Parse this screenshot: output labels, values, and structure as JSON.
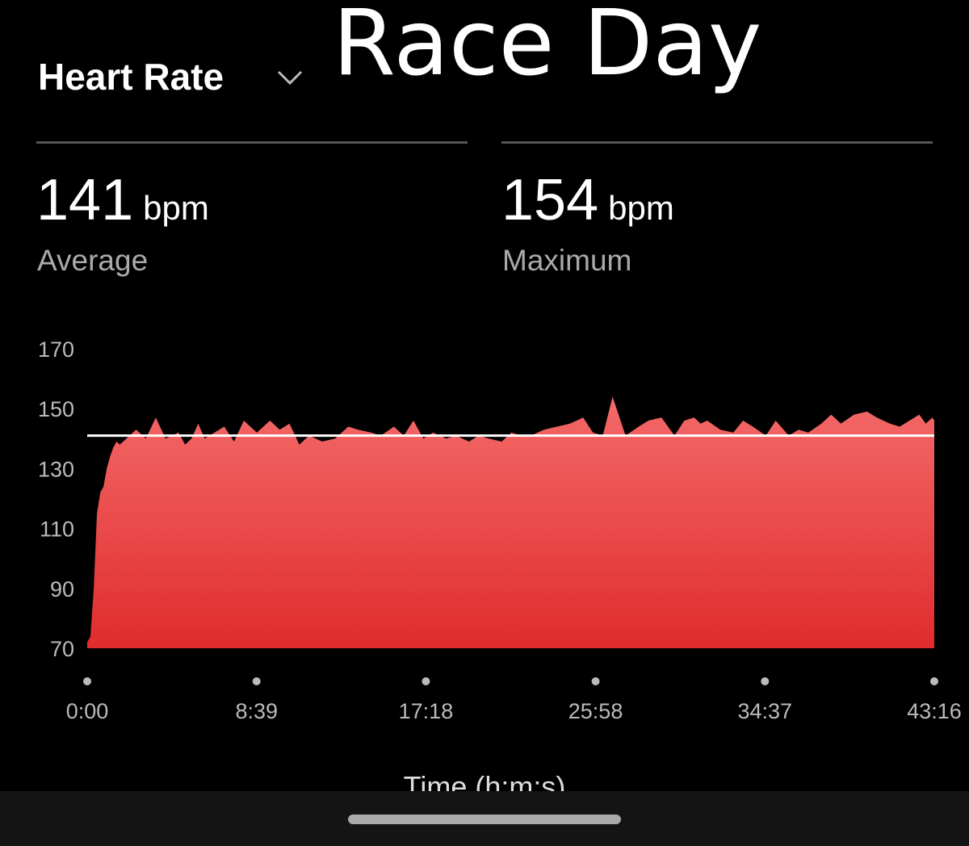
{
  "overlay_title": "Race Day",
  "metric_selector": {
    "label": "Heart Rate",
    "icon": "chevron-down-icon"
  },
  "stats": [
    {
      "value": "141",
      "unit": "bpm",
      "label": "Average"
    },
    {
      "value": "154",
      "unit": "bpm",
      "label": "Maximum"
    }
  ],
  "colors": {
    "fill_top": "#f46a6a",
    "fill_bottom": "#e02c2c",
    "average_line": "#ffffff"
  },
  "chart_data": {
    "type": "area",
    "title": "",
    "xlabel": "Time (h:m:s)",
    "ylabel": "",
    "x_unit": "seconds",
    "xlim": [
      0,
      2596
    ],
    "ylim": [
      70,
      170
    ],
    "y_ticks": [
      70,
      90,
      110,
      130,
      150,
      170
    ],
    "y_tick_labels": [
      "70",
      "90",
      "110",
      "130",
      "150",
      "170"
    ],
    "x_ticks": [
      0,
      519,
      1038,
      1558,
      2077,
      2596
    ],
    "x_tick_labels": [
      "0:00",
      "8:39",
      "17:18",
      "25:58",
      "34:37",
      "43:16"
    ],
    "average_line": 141,
    "grid": false,
    "series": [
      {
        "x": [
          0,
          10,
          20,
          30,
          40,
          50,
          60,
          70,
          80,
          90,
          100,
          120,
          150,
          180,
          210,
          240,
          260,
          280,
          300,
          320,
          340,
          360,
          390,
          420,
          450,
          480,
          500,
          520,
          560,
          590,
          620,
          650,
          680,
          720,
          760,
          780,
          800,
          830,
          870,
          900,
          940,
          970,
          1000,
          1030,
          1060,
          1100,
          1130,
          1170,
          1200,
          1230,
          1270,
          1300,
          1330,
          1360,
          1400,
          1440,
          1480,
          1520,
          1550,
          1580,
          1610,
          1650,
          1690,
          1720,
          1760,
          1800,
          1830,
          1860,
          1880,
          1900,
          1940,
          1980,
          2010,
          2040,
          2080,
          2110,
          2150,
          2180,
          2210,
          2250,
          2280,
          2310,
          2350,
          2390,
          2420,
          2460,
          2490,
          2520,
          2550,
          2570,
          2590,
          2596
        ],
        "y": [
          72,
          74,
          90,
          115,
          122,
          124,
          130,
          134,
          137,
          139,
          138,
          140,
          143,
          140,
          147,
          140,
          141,
          142,
          138,
          140,
          145,
          140,
          142,
          144,
          139,
          146,
          144,
          142,
          146,
          143,
          145,
          138,
          141,
          139,
          140,
          142,
          144,
          143,
          142,
          141,
          144,
          141,
          146,
          140,
          142,
          140,
          141,
          139,
          141,
          140,
          139,
          142,
          141,
          141,
          143,
          144,
          145,
          147,
          142,
          141,
          154,
          141,
          144,
          146,
          147,
          141,
          146,
          147,
          145,
          146,
          143,
          142,
          146,
          144,
          141,
          146,
          141,
          143,
          142,
          145,
          148,
          145,
          148,
          149,
          147,
          145,
          144,
          146,
          148,
          145,
          147,
          146
        ]
      }
    ]
  }
}
